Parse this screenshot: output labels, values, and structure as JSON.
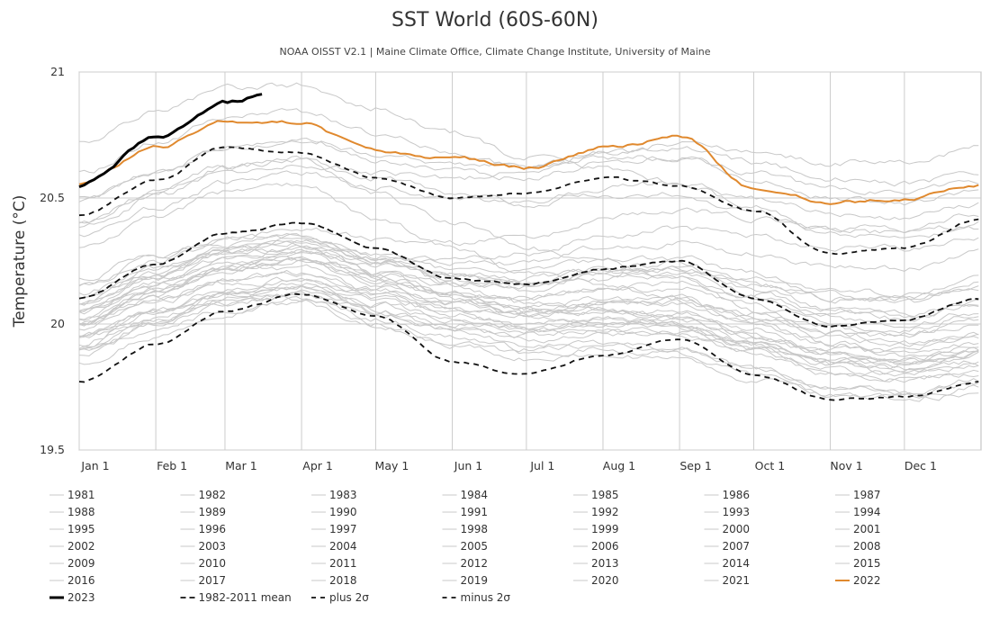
{
  "chart_data": {
    "type": "line",
    "title": "SST World (60S-60N)",
    "subtitle": "NOAA OISST V2.1 | Maine Climate Office, Climate Change Institute, University of Maine",
    "ylabel": "Temperature (°C)",
    "xlabel": "",
    "ylim": [
      19.5,
      21.0
    ],
    "yticks": [
      19.5,
      20,
      20.5,
      21
    ],
    "ytick_labels": [
      "19.5",
      "20",
      "20.5",
      "21"
    ],
    "xlim_day": [
      1,
      366
    ],
    "xticks": [
      {
        "label": "Jan 1",
        "day": 1
      },
      {
        "label": "Feb 1",
        "day": 32
      },
      {
        "label": "Mar 1",
        "day": 60
      },
      {
        "label": "Apr 1",
        "day": 91
      },
      {
        "label": "May 1",
        "day": 121
      },
      {
        "label": "Jun 1",
        "day": 152
      },
      {
        "label": "Jul 1",
        "day": 182
      },
      {
        "label": "Aug 1",
        "day": 213
      },
      {
        "label": "Sep 1",
        "day": 244
      },
      {
        "label": "Oct 1",
        "day": 274
      },
      {
        "label": "Nov 1",
        "day": 305
      },
      {
        "label": "Dec 1",
        "day": 335
      }
    ],
    "grid": true,
    "legend_position": "bottom",
    "colors": {
      "historical": "#c8c8c8",
      "year2022": "#e0892e",
      "year2023": "#000000",
      "stats": "#111111",
      "grid": "#cccccc",
      "frame": "#b8b8b8"
    },
    "knot_days": [
      1,
      32,
      60,
      91,
      121,
      152,
      182,
      213,
      244,
      274,
      305,
      335,
      366
    ],
    "series": [
      {
        "name": "1981",
        "style": "historical",
        "values": [
          19.85,
          19.95,
          20.05,
          20.1,
          20.02,
          19.95,
          19.9,
          19.92,
          19.9,
          19.82,
          19.75,
          19.72,
          19.76
        ]
      },
      {
        "name": "1982",
        "style": "historical",
        "values": [
          19.9,
          20.0,
          20.08,
          20.1,
          20.0,
          19.92,
          19.88,
          19.9,
          19.88,
          19.8,
          19.72,
          19.7,
          19.75
        ]
      },
      {
        "name": "1983",
        "style": "historical",
        "values": [
          20.05,
          20.18,
          20.3,
          20.32,
          20.2,
          20.12,
          20.05,
          20.05,
          20.02,
          19.95,
          19.88,
          19.85,
          19.9
        ]
      },
      {
        "name": "1984",
        "style": "historical",
        "values": [
          19.95,
          20.02,
          20.1,
          20.12,
          20.05,
          19.97,
          19.92,
          19.92,
          19.9,
          19.83,
          19.76,
          19.73,
          19.78
        ]
      },
      {
        "name": "1985",
        "style": "historical",
        "values": [
          19.88,
          19.98,
          20.05,
          20.08,
          20.0,
          19.92,
          19.86,
          19.88,
          19.86,
          19.78,
          19.72,
          19.7,
          19.73
        ]
      },
      {
        "name": "1986",
        "style": "historical",
        "values": [
          19.92,
          20.05,
          20.12,
          20.15,
          20.05,
          19.98,
          19.95,
          19.98,
          19.97,
          19.9,
          19.84,
          19.82,
          19.88
        ]
      },
      {
        "name": "1987",
        "style": "historical",
        "values": [
          20.0,
          20.12,
          20.22,
          20.25,
          20.18,
          20.12,
          20.1,
          20.15,
          20.16,
          20.1,
          20.02,
          20.0,
          20.05
        ]
      },
      {
        "name": "1988",
        "style": "historical",
        "values": [
          20.08,
          20.18,
          20.25,
          20.28,
          20.18,
          20.1,
          20.02,
          20.02,
          20.0,
          19.92,
          19.85,
          19.82,
          19.85
        ]
      },
      {
        "name": "1989",
        "style": "historical",
        "values": [
          19.9,
          20.0,
          20.08,
          20.12,
          20.05,
          19.98,
          19.94,
          19.96,
          19.96,
          19.88,
          19.8,
          19.78,
          19.82
        ]
      },
      {
        "name": "1990",
        "style": "historical",
        "values": [
          20.0,
          20.1,
          20.18,
          20.2,
          20.14,
          20.08,
          20.04,
          20.06,
          20.05,
          19.98,
          19.9,
          19.88,
          19.92
        ]
      },
      {
        "name": "1991",
        "style": "historical",
        "values": [
          20.02,
          20.14,
          20.22,
          20.25,
          20.16,
          20.1,
          20.06,
          20.08,
          20.08,
          20.02,
          19.95,
          19.92,
          19.96
        ]
      },
      {
        "name": "1992",
        "style": "historical",
        "values": [
          20.05,
          20.15,
          20.22,
          20.22,
          20.12,
          20.04,
          19.98,
          19.98,
          19.96,
          19.88,
          19.8,
          19.78,
          19.8
        ]
      },
      {
        "name": "1993",
        "style": "historical",
        "values": [
          19.95,
          20.05,
          20.12,
          20.15,
          20.08,
          20.02,
          19.98,
          20.0,
          20.0,
          19.93,
          19.86,
          19.84,
          19.88
        ]
      },
      {
        "name": "1994",
        "style": "historical",
        "values": [
          20.0,
          20.1,
          20.18,
          20.2,
          20.14,
          20.08,
          20.06,
          20.1,
          20.1,
          20.03,
          19.96,
          19.95,
          20.0
        ]
      },
      {
        "name": "1995",
        "style": "historical",
        "values": [
          20.08,
          20.2,
          20.28,
          20.3,
          20.2,
          20.12,
          20.06,
          20.06,
          20.04,
          19.96,
          19.88,
          19.85,
          19.88
        ]
      },
      {
        "name": "1996",
        "style": "historical",
        "values": [
          19.98,
          20.08,
          20.16,
          20.18,
          20.1,
          20.04,
          20.0,
          20.02,
          20.02,
          19.95,
          19.88,
          19.86,
          19.9
        ]
      },
      {
        "name": "1997",
        "style": "historical",
        "values": [
          20.0,
          20.12,
          20.22,
          20.28,
          20.25,
          20.25,
          20.28,
          20.35,
          20.38,
          20.35,
          20.3,
          20.3,
          20.35
        ]
      },
      {
        "name": "1998",
        "style": "historical",
        "values": [
          20.4,
          20.52,
          20.62,
          20.65,
          20.52,
          20.4,
          20.3,
          20.25,
          20.18,
          20.05,
          19.96,
          19.92,
          19.95
        ]
      },
      {
        "name": "1999",
        "style": "historical",
        "values": [
          19.95,
          20.05,
          20.12,
          20.15,
          20.08,
          20.02,
          19.98,
          20.0,
          19.98,
          19.9,
          19.82,
          19.8,
          19.84
        ]
      },
      {
        "name": "2000",
        "style": "historical",
        "values": [
          19.9,
          20.0,
          20.1,
          20.12,
          20.06,
          20.0,
          19.98,
          20.0,
          20.0,
          19.93,
          19.86,
          19.84,
          19.9
        ]
      },
      {
        "name": "2001",
        "style": "historical",
        "values": [
          20.02,
          20.14,
          20.22,
          20.25,
          20.18,
          20.12,
          20.1,
          20.14,
          20.14,
          20.07,
          20.0,
          19.98,
          20.04
        ]
      },
      {
        "name": "2002",
        "style": "historical",
        "values": [
          20.08,
          20.2,
          20.28,
          20.3,
          20.24,
          20.18,
          20.16,
          20.2,
          20.22,
          20.16,
          20.1,
          20.08,
          20.14
        ]
      },
      {
        "name": "2003",
        "style": "historical",
        "values": [
          20.15,
          20.25,
          20.32,
          20.34,
          20.26,
          20.2,
          20.16,
          20.2,
          20.2,
          20.12,
          20.05,
          20.03,
          20.08
        ]
      },
      {
        "name": "2004",
        "style": "historical",
        "values": [
          20.1,
          20.22,
          20.3,
          20.32,
          20.25,
          20.18,
          20.15,
          20.18,
          20.18,
          20.1,
          20.04,
          20.02,
          20.08
        ]
      },
      {
        "name": "2005",
        "style": "historical",
        "values": [
          20.1,
          20.2,
          20.28,
          20.32,
          20.26,
          20.2,
          20.18,
          20.22,
          20.22,
          20.14,
          20.06,
          20.04,
          20.08
        ]
      },
      {
        "name": "2006",
        "style": "historical",
        "values": [
          20.05,
          20.16,
          20.24,
          20.26,
          20.2,
          20.16,
          20.14,
          20.2,
          20.22,
          20.16,
          20.1,
          20.1,
          20.16
        ]
      },
      {
        "name": "2007",
        "style": "historical",
        "values": [
          20.18,
          20.28,
          20.34,
          20.35,
          20.26,
          20.16,
          20.08,
          20.06,
          20.02,
          19.92,
          19.84,
          19.8,
          19.84
        ]
      },
      {
        "name": "2008",
        "style": "historical",
        "values": [
          19.9,
          20.02,
          20.12,
          20.16,
          20.1,
          20.06,
          20.04,
          20.08,
          20.1,
          20.04,
          19.98,
          19.96,
          20.02
        ]
      },
      {
        "name": "2009",
        "style": "historical",
        "values": [
          20.05,
          20.16,
          20.25,
          20.3,
          20.26,
          20.24,
          20.24,
          20.3,
          20.32,
          20.28,
          20.22,
          20.22,
          20.28
        ]
      },
      {
        "name": "2010",
        "style": "historical",
        "values": [
          20.3,
          20.42,
          20.52,
          20.55,
          20.42,
          20.3,
          20.2,
          20.16,
          20.1,
          20.0,
          19.92,
          19.88,
          19.92
        ]
      },
      {
        "name": "2011",
        "style": "historical",
        "values": [
          19.95,
          20.05,
          20.14,
          20.18,
          20.12,
          20.06,
          20.04,
          20.08,
          20.08,
          20.0,
          19.92,
          19.9,
          19.95
        ]
      },
      {
        "name": "2012",
        "style": "historical",
        "values": [
          20.0,
          20.12,
          20.22,
          20.26,
          20.2,
          20.16,
          20.16,
          20.22,
          20.24,
          20.18,
          20.12,
          20.1,
          20.14
        ]
      },
      {
        "name": "2013",
        "style": "historical",
        "values": [
          20.12,
          20.22,
          20.3,
          20.34,
          20.28,
          20.22,
          20.2,
          20.25,
          20.26,
          20.2,
          20.14,
          20.12,
          20.18
        ]
      },
      {
        "name": "2014",
        "style": "historical",
        "values": [
          20.15,
          20.26,
          20.34,
          20.38,
          20.34,
          20.32,
          20.34,
          20.42,
          20.46,
          20.42,
          20.38,
          20.38,
          20.44
        ]
      },
      {
        "name": "2015",
        "style": "historical",
        "values": [
          20.38,
          20.5,
          20.6,
          20.64,
          20.6,
          20.58,
          20.6,
          20.68,
          20.72,
          20.68,
          20.64,
          20.64,
          20.7
        ]
      },
      {
        "name": "2016",
        "style": "historical",
        "values": [
          20.72,
          20.84,
          20.94,
          20.95,
          20.86,
          20.76,
          20.66,
          20.62,
          20.56,
          20.46,
          20.38,
          20.36,
          20.4
        ]
      },
      {
        "name": "2017",
        "style": "historical",
        "values": [
          20.4,
          20.52,
          20.62,
          20.66,
          20.58,
          20.52,
          20.48,
          20.52,
          20.52,
          20.44,
          20.36,
          20.34,
          20.38
        ]
      },
      {
        "name": "2018",
        "style": "historical",
        "values": [
          20.35,
          20.46,
          20.56,
          20.6,
          20.55,
          20.5,
          20.48,
          20.54,
          20.56,
          20.5,
          20.44,
          20.42,
          20.48
        ]
      },
      {
        "name": "2019",
        "style": "historical",
        "values": [
          20.48,
          20.6,
          20.7,
          20.74,
          20.68,
          20.64,
          20.62,
          20.68,
          20.7,
          20.64,
          20.58,
          20.56,
          20.6
        ]
      },
      {
        "name": "2020",
        "style": "historical",
        "values": [
          20.6,
          20.72,
          20.82,
          20.84,
          20.76,
          20.68,
          20.62,
          20.66,
          20.66,
          20.58,
          20.5,
          20.48,
          20.52
        ]
      },
      {
        "name": "2021",
        "style": "historical",
        "values": [
          20.5,
          20.6,
          20.7,
          20.72,
          20.65,
          20.6,
          20.58,
          20.64,
          20.66,
          20.6,
          20.54,
          20.52,
          20.56
        ]
      },
      {
        "name": "2022",
        "style": "year2022",
        "values": [
          20.56,
          20.7,
          20.8,
          20.8,
          20.68,
          20.66,
          20.62,
          20.7,
          20.74,
          20.54,
          20.48,
          20.5,
          20.55
        ]
      },
      {
        "name": "2023",
        "style": "year2023",
        "values": [
          20.55,
          20.74,
          20.88,
          20.96
        ]
      },
      {
        "name": "1982-2011 mean",
        "style": "mean",
        "values": [
          20.1,
          20.24,
          20.36,
          20.4,
          20.3,
          20.18,
          20.16,
          20.22,
          20.25,
          20.1,
          19.99,
          20.02,
          20.1
        ]
      },
      {
        "name": "plus 2σ",
        "style": "plus2",
        "values": [
          20.43,
          20.57,
          20.7,
          20.68,
          20.58,
          20.5,
          20.52,
          20.58,
          20.55,
          20.45,
          20.28,
          20.3,
          20.42
        ]
      },
      {
        "name": "minus 2σ",
        "style": "minus2",
        "values": [
          19.77,
          19.92,
          20.05,
          20.12,
          20.03,
          19.85,
          19.8,
          19.88,
          19.94,
          19.8,
          19.7,
          19.71,
          19.77
        ]
      }
    ]
  }
}
